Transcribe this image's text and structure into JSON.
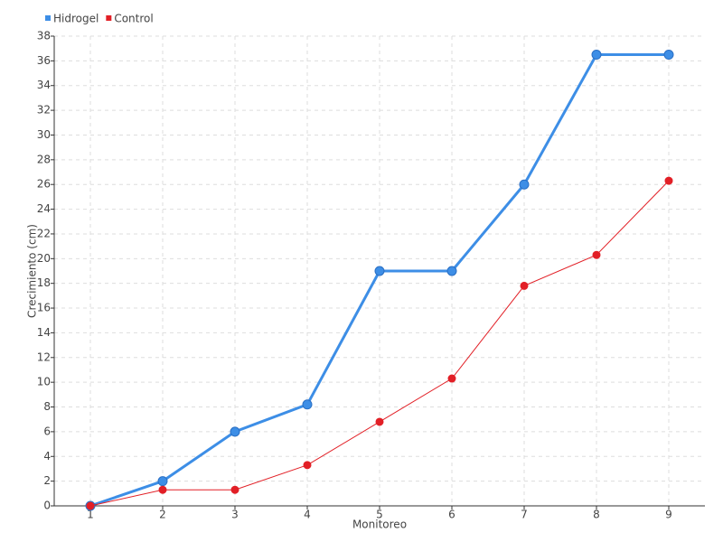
{
  "chart_data": {
    "type": "line",
    "x_label": "Monitoreo",
    "y_label": "Crecimiento (cm)",
    "categories": [
      "1",
      "2",
      "3",
      "4",
      "5",
      "6",
      "7",
      "8",
      "9"
    ],
    "series": [
      {
        "name": "Hidrogel",
        "color": "#3d8ee6",
        "values": [
          0,
          2,
          6,
          8.2,
          19,
          19,
          26,
          36.5,
          36.5
        ]
      },
      {
        "name": "Control",
        "color": "#e21f26",
        "values": [
          0,
          1.3,
          1.3,
          3.3,
          6.8,
          10.3,
          17.8,
          20.3,
          26.3
        ]
      }
    ],
    "ylim": [
      0,
      38
    ],
    "yticks": [
      0,
      2,
      4,
      6,
      8,
      10,
      12,
      14,
      16,
      18,
      20,
      22,
      24,
      26,
      28,
      30,
      32,
      34,
      36,
      38
    ],
    "grid": true,
    "legend": "top-left"
  }
}
